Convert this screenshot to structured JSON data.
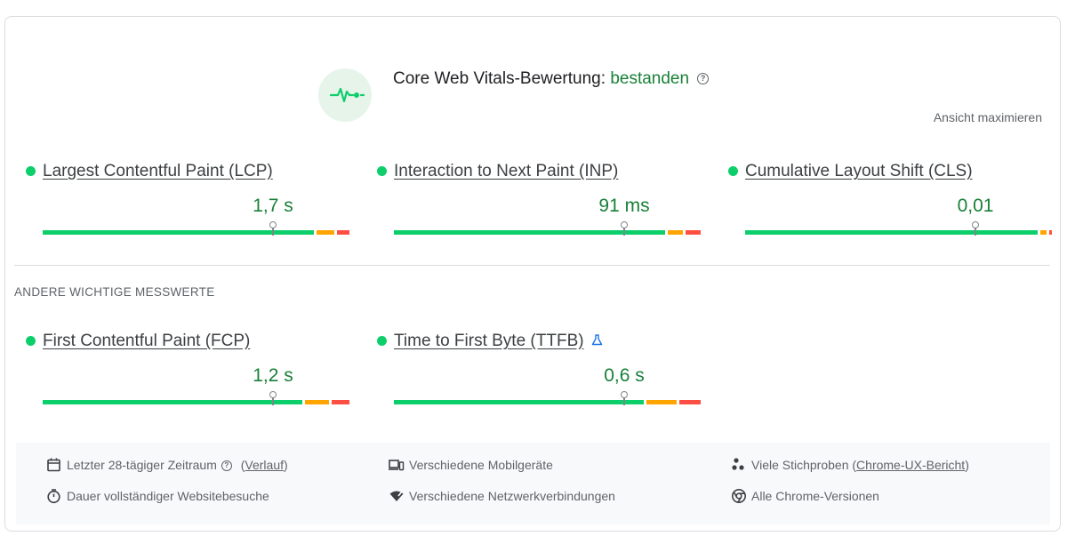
{
  "header": {
    "icon": "pulse-icon",
    "title_prefix": "Core Web Vitals-Bewertung: ",
    "status": "bestanden",
    "help_glyph": "?",
    "expand_label": "Ansicht maximieren"
  },
  "colors": {
    "good": "#0cce6b",
    "needs_improvement": "#ffa400",
    "poor": "#ff4e42",
    "status_text": "#188038"
  },
  "core_metrics": [
    {
      "name": "Largest Contentful Paint (LCP)",
      "value": "1,7 s",
      "marker_position": 0.75,
      "distribution": {
        "good": 0.89,
        "needs_improvement": 0.06,
        "poor": 0.04
      }
    },
    {
      "name": "Interaction to Next Paint (INP)",
      "value": "91 ms",
      "marker_position": 0.75,
      "distribution": {
        "good": 0.89,
        "needs_improvement": 0.05,
        "poor": 0.05
      }
    },
    {
      "name": "Cumulative Layout Shift (CLS)",
      "value": "0,01",
      "marker_position": 0.75,
      "distribution": {
        "good": 0.97,
        "needs_improvement": 0.02,
        "poor": 0.01
      }
    }
  ],
  "other_section_label": "ANDERE WICHTIGE MESSWERTE",
  "other_metrics": [
    {
      "name": "First Contentful Paint (FCP)",
      "value": "1,2 s",
      "marker_position": 0.75,
      "distribution": {
        "good": 0.88,
        "needs_improvement": 0.08,
        "poor": 0.06
      }
    },
    {
      "name": "Time to First Byte (TTFB)",
      "value": "0,6 s",
      "marker_position": 0.75,
      "lab_icon": "flask-icon",
      "distribution": {
        "good": 0.83,
        "needs_improvement": 0.1,
        "poor": 0.07
      }
    }
  ],
  "footer": {
    "period_label": "Letzter 28-tägiger Zeitraum",
    "period_help": "?",
    "history_link": "Verlauf",
    "devices_label": "Verschiedene Mobilgeräte",
    "samples_label": "Viele Stichproben (",
    "samples_link": "Chrome-UX-Bericht",
    "samples_close": ")",
    "duration_label": "Dauer vollständiger Websitebesuche",
    "network_label": "Verschiedene Netzwerkverbindungen",
    "versions_label": "Alle Chrome-Versionen"
  }
}
